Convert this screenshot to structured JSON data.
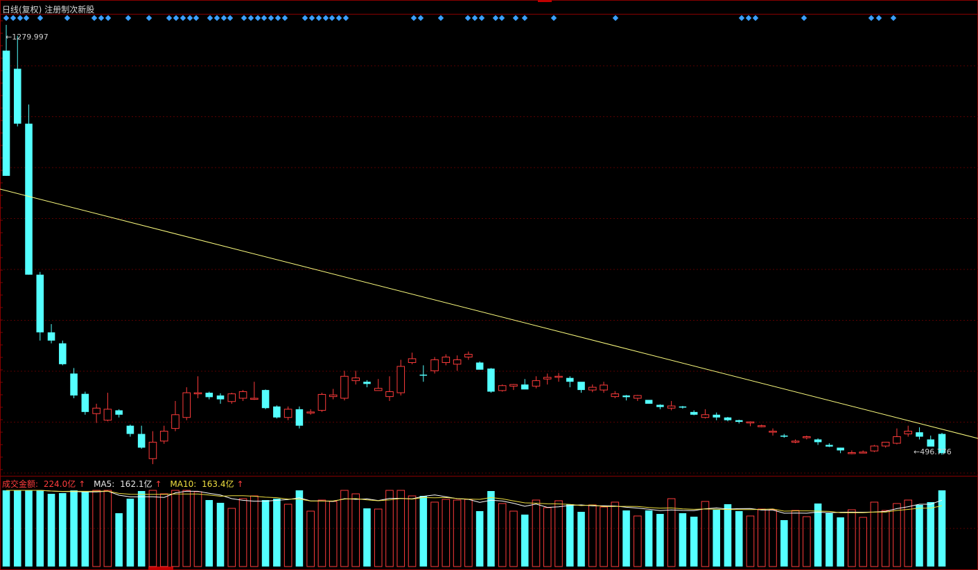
{
  "header": {
    "period": "日线(复权)",
    "indicator": "注册制次新股"
  },
  "volume_legend": {
    "amount_label": "成交金额: ",
    "amount_value": "224.0亿",
    "ma5_label": "MA5: ",
    "ma5_value": "162.1亿",
    "ma10_label": "MA10: ",
    "ma10_value": "163.4亿",
    "arrow": "↑"
  },
  "annotations": {
    "high_label": "1279.997",
    "low_label": "496.776"
  },
  "colors": {
    "up": "#ff3b3b",
    "down": "#54ffff",
    "trendline": "#ffff80",
    "ma5": "#ffffff",
    "ma10": "#f0e040",
    "grid": "#5a0000",
    "marker": "#3aa0ff"
  },
  "chart_data": [
    {
      "type": "candlestick",
      "title": "日线(复权) 注册制次新股",
      "price_range": [
        460,
        1300
      ],
      "high_mark": 1279.997,
      "low_mark": 496.776,
      "trendline": {
        "from": [
          0,
          1065
        ],
        "to": [
          200,
          495
        ]
      },
      "candles": [
        [
          1233,
          1005,
          1280,
          1005
        ],
        [
          1200,
          1100,
          1260,
          1095
        ],
        [
          1100,
          825,
          1135,
          825
        ],
        [
          825,
          720,
          830,
          705
        ],
        [
          720,
          705,
          735,
          700
        ],
        [
          700,
          662,
          705,
          660
        ],
        [
          645,
          605,
          655,
          600
        ],
        [
          608,
          575,
          612,
          570
        ],
        [
          572,
          582,
          590,
          555
        ],
        [
          560,
          580,
          610,
          558
        ],
        [
          578,
          570,
          580,
          565
        ],
        [
          550,
          535,
          552,
          530
        ],
        [
          535,
          510,
          550,
          508
        ],
        [
          490,
          520,
          540,
          480
        ],
        [
          522,
          540,
          550,
          517
        ],
        [
          545,
          570,
          595,
          540
        ],
        [
          565,
          610,
          620,
          560
        ],
        [
          608,
          610,
          640,
          600
        ],
        [
          610,
          602,
          612,
          598
        ],
        [
          605,
          598,
          609,
          590
        ],
        [
          594,
          608,
          610,
          590
        ],
        [
          600,
          612,
          615,
          595
        ],
        [
          598,
          600,
          630,
          597
        ],
        [
          615,
          582,
          616,
          580
        ],
        [
          585,
          565,
          587,
          563
        ],
        [
          565,
          580,
          585,
          560
        ],
        [
          580,
          550,
          585,
          545
        ],
        [
          575,
          575,
          580,
          570
        ],
        [
          578,
          607,
          610,
          575
        ],
        [
          603,
          606,
          617,
          598
        ],
        [
          600,
          640,
          650,
          596
        ],
        [
          632,
          637,
          650,
          625
        ],
        [
          630,
          626,
          633,
          620
        ],
        [
          614,
          618,
          635,
          614
        ],
        [
          603,
          612,
          640,
          595
        ],
        [
          610,
          658,
          670,
          605
        ],
        [
          665,
          672,
          683,
          662
        ],
        [
          643,
          642,
          660,
          630
        ],
        [
          650,
          670,
          675,
          645
        ],
        [
          665,
          675,
          680,
          660
        ],
        [
          662,
          670,
          678,
          650
        ],
        [
          675,
          680,
          685,
          670
        ],
        [
          665,
          652,
          667,
          660
        ],
        [
          654,
          612,
          655,
          610
        ],
        [
          614,
          623,
          625,
          612
        ],
        [
          622,
          625,
          626,
          615
        ],
        [
          625,
          616,
          635,
          620
        ],
        [
          622,
          632,
          640,
          618
        ],
        [
          635,
          638,
          645,
          625
        ],
        [
          640,
          640,
          646,
          630
        ],
        [
          637,
          630,
          640,
          620
        ],
        [
          630,
          615,
          628,
          610
        ],
        [
          615,
          620,
          625,
          611
        ],
        [
          615,
          624,
          630,
          610
        ],
        [
          603,
          608,
          613,
          600
        ],
        [
          605,
          602,
          606,
          596
        ],
        [
          600,
          605,
          606,
          595
        ],
        [
          597,
          590,
          595,
          590
        ],
        [
          588,
          584,
          589,
          580
        ],
        [
          582,
          586,
          595,
          578
        ],
        [
          585,
          583,
          586,
          581
        ],
        [
          575,
          570,
          578,
          569
        ],
        [
          565,
          570,
          580,
          563
        ],
        [
          570,
          565,
          574,
          560
        ],
        [
          565,
          560,
          566,
          558
        ],
        [
          560,
          557,
          561,
          554
        ],
        [
          555,
          557,
          558,
          549
        ],
        [
          550,
          550,
          552,
          547
        ],
        [
          540,
          540,
          545,
          532
        ],
        [
          532,
          530,
          535,
          528
        ],
        [
          520,
          522,
          525,
          518
        ],
        [
          528,
          530,
          532,
          525
        ],
        [
          525,
          520,
          527,
          515
        ],
        [
          515,
          512,
          518,
          511
        ],
        [
          510,
          505,
          510,
          500
        ],
        [
          500,
          501,
          505,
          498
        ],
        [
          502,
          502,
          505,
          500
        ],
        [
          504,
          513,
          515,
          502
        ],
        [
          513,
          520,
          520,
          510
        ],
        [
          518,
          530,
          545,
          516
        ],
        [
          535,
          540,
          550,
          530
        ],
        [
          538,
          530,
          547,
          525
        ],
        [
          525,
          512,
          532,
          520
        ],
        [
          535,
          500,
          537,
          497
        ]
      ]
    },
    {
      "type": "bar",
      "title": "成交金额",
      "unit": "亿",
      "current": 224.0,
      "ma5": 162.1,
      "ma10": 163.4
    }
  ]
}
